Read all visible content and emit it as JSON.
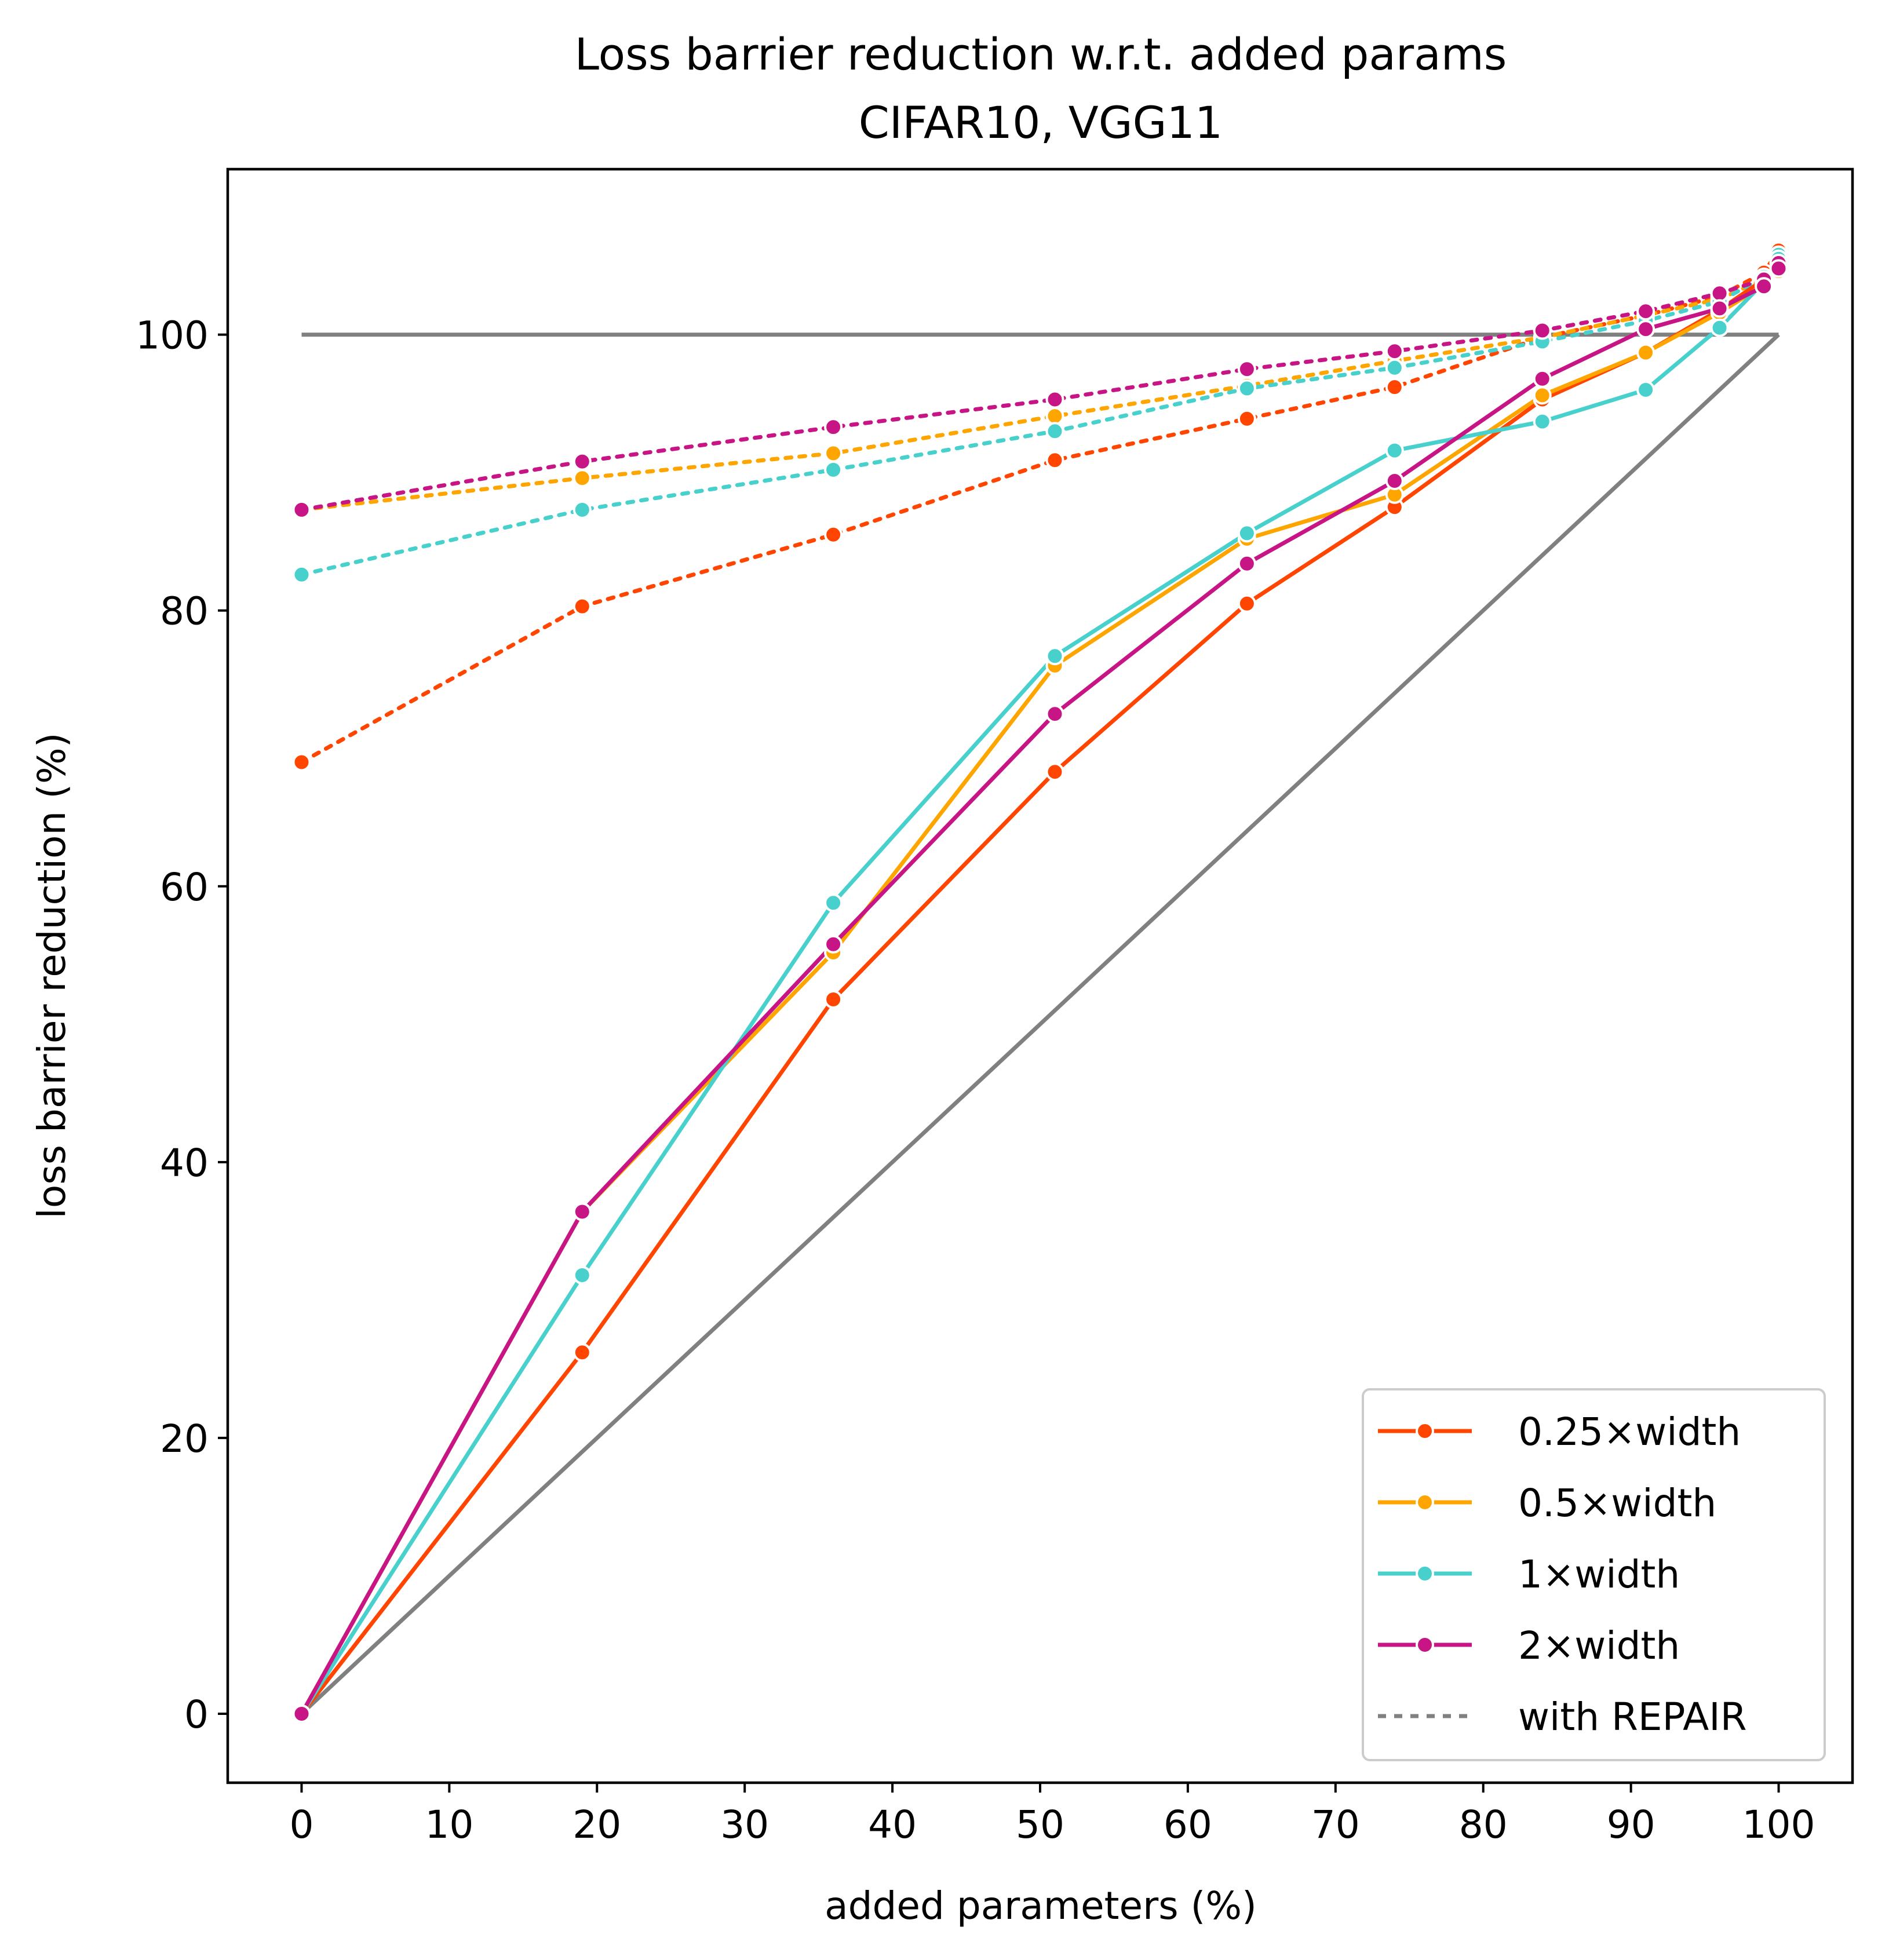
{
  "chart_data": {
    "type": "line",
    "title": "Loss barrier reduction w.r.t. added params",
    "subtitle": "CIFAR10, VGG11",
    "xlabel": "added parameters (%)",
    "ylabel": "loss barrier reduction (%)",
    "xlim": [
      -5,
      105
    ],
    "ylim": [
      -5,
      112
    ],
    "xticks": [
      0,
      10,
      20,
      30,
      40,
      50,
      60,
      70,
      80,
      90,
      100
    ],
    "yticks": [
      0,
      20,
      40,
      60,
      80,
      100
    ],
    "legend_position": "lower-right",
    "x": [
      0,
      19,
      36,
      51,
      64,
      74,
      84,
      91,
      96,
      99,
      100
    ],
    "series": [
      {
        "name": "0.25×width",
        "color": "#FF4500",
        "values": [
          0,
          26.2,
          51.8,
          68.3,
          80.5,
          87.5,
          95.3,
          98.7,
          101.8,
          104.0,
          105.3
        ],
        "repair_values": [
          69.0,
          80.3,
          85.5,
          90.9,
          93.9,
          96.2,
          99.8,
          101.4,
          102.8,
          104.5,
          106.1
        ]
      },
      {
        "name": "0.5×width",
        "color": "#FFA500",
        "values": [
          0,
          36.4,
          55.2,
          76.0,
          85.2,
          88.4,
          95.6,
          98.7,
          101.6,
          103.6,
          104.6
        ],
        "repair_values": [
          87.3,
          89.6,
          91.4,
          94.1,
          96.3,
          98.1,
          99.8,
          101.4,
          102.6,
          104.0,
          104.9
        ]
      },
      {
        "name": "1×width",
        "color": "#48D1CC",
        "values": [
          0,
          31.8,
          58.8,
          76.7,
          85.6,
          91.6,
          93.7,
          96.0,
          100.5,
          103.8,
          105.5
        ],
        "repair_values": [
          82.6,
          87.3,
          90.2,
          93.0,
          96.1,
          97.6,
          99.5,
          101.0,
          102.4,
          104.2,
          105.8
        ]
      },
      {
        "name": "2×width",
        "color": "#C71585",
        "values": [
          0,
          36.4,
          55.8,
          72.5,
          83.4,
          89.4,
          96.8,
          100.4,
          101.9,
          103.5,
          104.8
        ],
        "repair_values": [
          87.3,
          90.8,
          93.3,
          95.3,
          97.5,
          98.8,
          100.3,
          101.7,
          103.0,
          104.0,
          105.2
        ]
      }
    ],
    "reference_lines": [
      {
        "color": "#808080",
        "x": [
          0,
          100
        ],
        "values": [
          100,
          100
        ]
      },
      {
        "color": "#808080",
        "x": [
          0,
          100
        ],
        "values": [
          0,
          100
        ]
      }
    ],
    "legend": {
      "entries": [
        {
          "label": "0.25×width",
          "color": "#FF4500",
          "style": "solid-marker"
        },
        {
          "label": "0.5×width",
          "color": "#FFA500",
          "style": "solid-marker"
        },
        {
          "label": "1×width",
          "color": "#48D1CC",
          "style": "solid-marker"
        },
        {
          "label": "2×width",
          "color": "#C71585",
          "style": "solid-marker"
        },
        {
          "label": "with REPAIR",
          "color": "#808080",
          "style": "dotted"
        }
      ]
    }
  }
}
